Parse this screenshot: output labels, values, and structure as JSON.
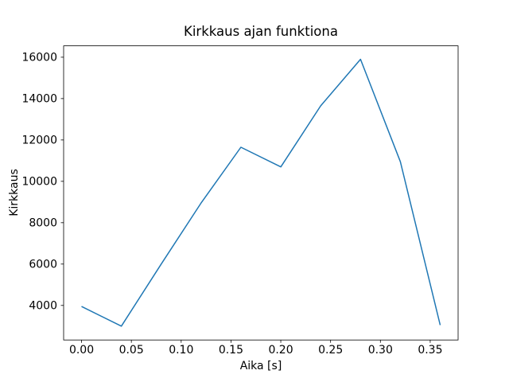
{
  "figure": {
    "background": "#ffffff"
  },
  "chart_data": {
    "type": "line",
    "title": "Kirkkaus ajan funktiona",
    "xlabel": "Aika [s]",
    "ylabel": "Kirkkaus",
    "x": [
      0.0,
      0.04,
      0.08,
      0.12,
      0.16,
      0.2,
      0.24,
      0.28,
      0.32,
      0.36
    ],
    "y": [
      3950,
      3000,
      6000,
      8950,
      11650,
      10700,
      13650,
      15900,
      10950,
      3050
    ],
    "xticks": [
      0.0,
      0.05,
      0.1,
      0.15,
      0.2,
      0.25,
      0.3,
      0.35
    ],
    "xtick_labels": [
      "0.00",
      "0.05",
      "0.10",
      "0.15",
      "0.20",
      "0.25",
      "0.30",
      "0.35"
    ],
    "yticks": [
      4000,
      6000,
      8000,
      10000,
      12000,
      14000,
      16000
    ],
    "ytick_labels": [
      "4000",
      "6000",
      "8000",
      "10000",
      "12000",
      "14000",
      "16000"
    ],
    "xlim": [
      -0.018,
      0.378
    ],
    "ylim": [
      2330,
      16550
    ],
    "line_color": "#1f77b4",
    "axis_color": "#000000",
    "grid": false,
    "legend": "none"
  }
}
